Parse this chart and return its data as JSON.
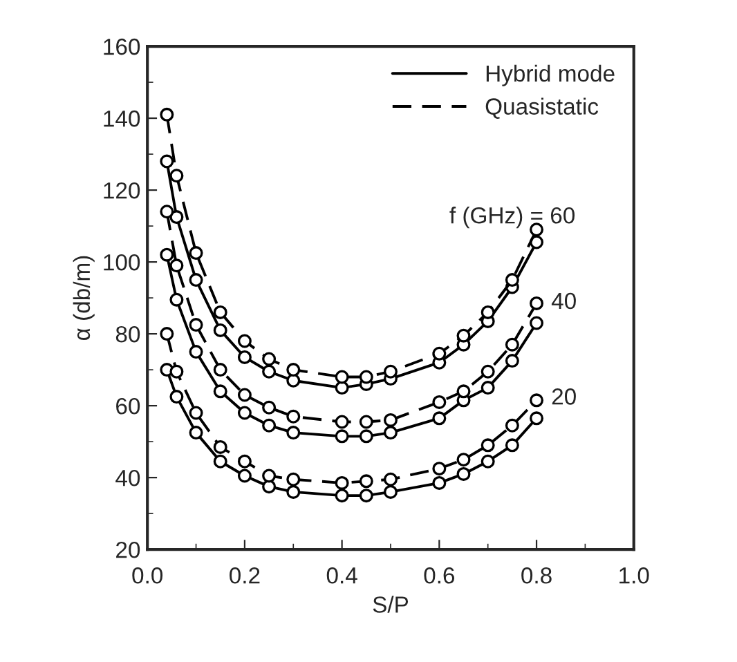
{
  "chart_data": {
    "type": "line",
    "xlabel": "S/P",
    "ylabel": "α (db/m)",
    "x": [
      0.04,
      0.06,
      0.1,
      0.15,
      0.2,
      0.25,
      0.3,
      0.4,
      0.45,
      0.5,
      0.6,
      0.65,
      0.7,
      0.75,
      0.8
    ],
    "series": [
      {
        "name": "Hybrid mode",
        "color": "#000000",
        "line_style": "solid",
        "values": [
          128,
          112.5,
          95,
          81,
          73.5,
          69.5,
          67,
          65,
          66,
          67.5,
          72,
          77,
          83.5,
          93,
          105.5
        ]
      },
      {
        "name": "Quasistatic",
        "color": "#000000",
        "line_style": "dashed",
        "values": [
          141,
          124,
          102.5,
          86,
          78,
          73,
          70,
          68,
          68,
          69.5,
          74.5,
          79.5,
          86,
          95,
          109
        ]
      },
      {
        "color": "#000000",
        "line_style": "solid",
        "values": [
          102,
          89.5,
          75,
          64,
          58,
          54.5,
          52.5,
          51.5,
          51.5,
          52.5,
          56.5,
          61.5,
          65,
          72.5,
          83
        ]
      },
      {
        "color": "#000000",
        "line_style": "dashed",
        "values": [
          114,
          99,
          82.5,
          70,
          63,
          59.5,
          57,
          55.5,
          55.5,
          56,
          61,
          64,
          69.5,
          77,
          88.5
        ]
      },
      {
        "color": "#000000",
        "line_style": "solid",
        "values": [
          70,
          62.5,
          52.5,
          44.5,
          40.5,
          37.5,
          36,
          35,
          35,
          36,
          38.5,
          41,
          44.5,
          49,
          56.5
        ]
      },
      {
        "color": "#000000",
        "line_style": "dashed",
        "values": [
          80,
          69.5,
          58,
          48.5,
          44.5,
          40.5,
          39.5,
          38.5,
          39,
          39.5,
          42.5,
          45,
          49,
          54.5,
          61.5
        ]
      }
    ],
    "annotations": [
      "f (GHz) = 60",
      "40",
      "20"
    ],
    "marker": "circle",
    "legend": "top right",
    "grid": false,
    "xlim": [
      0,
      1
    ],
    "xticks": [
      {
        "value": 0,
        "label": "0.0"
      },
      0.2,
      0.4,
      0.6,
      0.8,
      {
        "value": 1,
        "label": "1.0"
      }
    ],
    "ylim": [
      20,
      160
    ],
    "yticks": [
      20,
      40,
      60,
      80,
      100,
      120,
      140,
      160
    ]
  }
}
